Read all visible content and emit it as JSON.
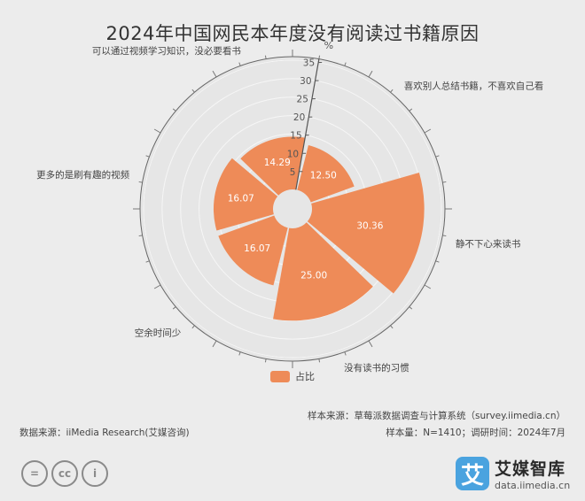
{
  "title": "2024年中国网民本年度没有阅读过书籍原因",
  "chart_data": {
    "type": "polar-bar",
    "title": "2024年中国网民本年度没有阅读过书籍原因",
    "unit": "%",
    "radial_ticks": [
      "5",
      "10",
      "15",
      "20",
      "25",
      "30",
      "35"
    ],
    "radial_range": [
      0,
      35
    ],
    "categories": [
      "喜欢别人总结书籍，不喜欢自己看",
      "静不下心来读书",
      "没有读书的习惯",
      "空余时间少",
      "更多的是刷有趣的视频",
      "可以通过视频学习知识，没必要看书"
    ],
    "series": [
      {
        "name": "占比",
        "color": "#ee8b58",
        "values": [
          12.5,
          30.36,
          25.0,
          16.07,
          16.07,
          14.29
        ]
      }
    ],
    "value_labels": [
      "12.50",
      "30.36",
      "25.00",
      "16.07",
      "16.07",
      "14.29"
    ],
    "legend_position": "bottom"
  },
  "footnotes": {
    "sample": "样本来源：草莓派数据调查与计算系统（survey.iimedia.cn）",
    "size": "样本量：N=1410；调研时间：2024年7月",
    "source": "数据来源：iiMedia Research(艾媒咨询)"
  },
  "brand": {
    "name": "艾媒智库",
    "url": "data.iimedia.cn",
    "logo_char": "艾"
  },
  "cc_badges": [
    "=",
    "cc",
    "i"
  ]
}
